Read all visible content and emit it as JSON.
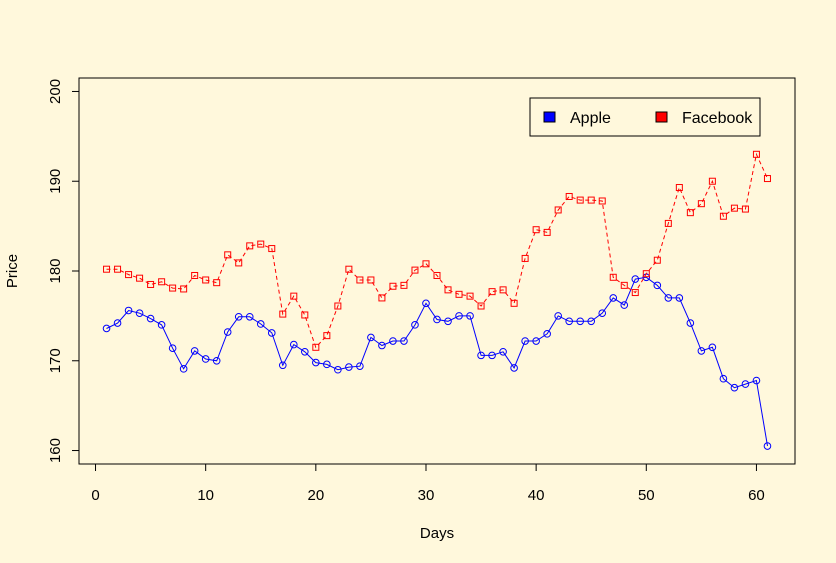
{
  "chart_data": {
    "type": "line",
    "title": "",
    "xlabel": "Days",
    "ylabel": "Price",
    "xlim": [
      -1.5,
      63.5
    ],
    "ylim": [
      158.5,
      201.5
    ],
    "xticks": [
      0,
      10,
      20,
      30,
      40,
      50,
      60
    ],
    "yticks": [
      160,
      170,
      180,
      190,
      200
    ],
    "legend_position": "top-right",
    "grid": false,
    "series": [
      {
        "name": "Apple",
        "color": "#0000ff",
        "line_style": "solid",
        "marker": "circle",
        "x": [
          1,
          2,
          3,
          4,
          5,
          6,
          7,
          8,
          9,
          10,
          11,
          12,
          13,
          14,
          15,
          16,
          17,
          18,
          19,
          20,
          21,
          22,
          23,
          24,
          25,
          26,
          27,
          28,
          29,
          30,
          31,
          32,
          33,
          34,
          35,
          36,
          37,
          38,
          39,
          40,
          41,
          42,
          43,
          44,
          45,
          46,
          47,
          48,
          49,
          50,
          51,
          52,
          53,
          54,
          55,
          56,
          57,
          58,
          59,
          60,
          61
        ],
        "values": [
          173.6,
          174.2,
          175.6,
          175.3,
          174.7,
          174.0,
          171.4,
          169.1,
          171.1,
          170.2,
          170.0,
          173.2,
          174.9,
          174.9,
          174.1,
          173.1,
          169.5,
          171.8,
          171.0,
          169.8,
          169.6,
          169.0,
          169.3,
          169.4,
          172.6,
          171.7,
          172.2,
          172.2,
          174.0,
          176.4,
          174.6,
          174.4,
          175.0,
          175.0,
          170.6,
          170.6,
          171.0,
          169.2,
          172.2,
          172.2,
          173.0,
          175.0,
          174.4,
          174.4,
          174.4,
          175.3,
          177.0,
          176.2,
          179.1,
          179.3,
          178.4,
          177.0,
          177.0,
          174.2,
          171.1,
          171.5,
          168.0,
          167.0,
          167.4,
          167.8,
          160.5
        ]
      },
      {
        "name": "Facebook",
        "color": "#ff0000",
        "line_style": "dashed",
        "marker": "square",
        "x": [
          1,
          2,
          3,
          4,
          5,
          6,
          7,
          8,
          9,
          10,
          11,
          12,
          13,
          14,
          15,
          16,
          17,
          18,
          19,
          20,
          21,
          22,
          23,
          24,
          25,
          26,
          27,
          28,
          29,
          30,
          31,
          32,
          33,
          34,
          35,
          36,
          37,
          38,
          39,
          40,
          41,
          42,
          43,
          44,
          45,
          46,
          47,
          48,
          49,
          50,
          51,
          52,
          53,
          54,
          55,
          56,
          57,
          58,
          59,
          60,
          61
        ],
        "values": [
          180.2,
          180.2,
          179.6,
          179.2,
          178.5,
          178.8,
          178.1,
          178.0,
          179.5,
          179.0,
          178.7,
          181.8,
          180.9,
          182.8,
          183.0,
          182.5,
          175.2,
          177.2,
          175.1,
          171.5,
          172.8,
          176.1,
          180.2,
          179.0,
          179.0,
          177.0,
          178.3,
          178.4,
          180.1,
          180.8,
          179.5,
          177.9,
          177.4,
          177.2,
          176.1,
          177.7,
          177.9,
          176.4,
          181.4,
          184.6,
          184.3,
          186.8,
          188.3,
          187.9,
          187.9,
          187.8,
          179.3,
          178.4,
          177.6,
          179.7,
          181.2,
          185.3,
          189.3,
          186.5,
          187.5,
          190.0,
          186.1,
          187.0,
          186.9,
          193.0,
          190.3
        ]
      }
    ]
  }
}
